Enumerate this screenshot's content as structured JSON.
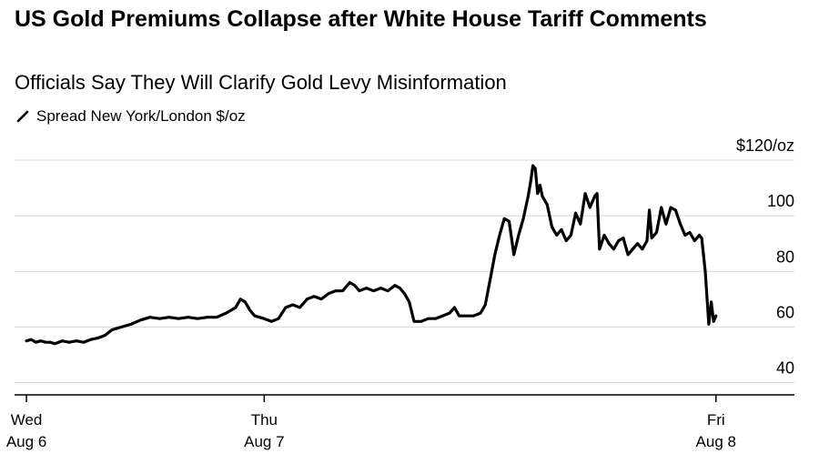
{
  "chart_data": {
    "type": "line",
    "title": "US Gold Premiums Collapse after White House Tariff Comments",
    "subtitle": "Officials Say They Will Clarify Gold Levy Misinformation",
    "series": [
      {
        "name": "Spread New York/London $/oz",
        "color": "#000000",
        "points": [
          [
            0.0,
            55
          ],
          [
            0.02,
            55.5
          ],
          [
            0.04,
            54.5
          ],
          [
            0.06,
            55
          ],
          [
            0.08,
            54.5
          ],
          [
            0.1,
            54.5
          ],
          [
            0.12,
            54
          ],
          [
            0.15,
            55
          ],
          [
            0.18,
            54.5
          ],
          [
            0.21,
            55
          ],
          [
            0.24,
            54.5
          ],
          [
            0.27,
            55.5
          ],
          [
            0.3,
            56
          ],
          [
            0.33,
            57
          ],
          [
            0.36,
            59
          ],
          [
            0.4,
            60
          ],
          [
            0.44,
            61
          ],
          [
            0.48,
            62.5
          ],
          [
            0.52,
            63.5
          ],
          [
            0.56,
            63
          ],
          [
            0.6,
            63.5
          ],
          [
            0.64,
            63
          ],
          [
            0.68,
            63.5
          ],
          [
            0.72,
            63
          ],
          [
            0.76,
            63.5
          ],
          [
            0.8,
            63.5
          ],
          [
            0.84,
            65
          ],
          [
            0.88,
            67
          ],
          [
            0.9,
            70
          ],
          [
            0.92,
            69
          ],
          [
            0.94,
            66
          ],
          [
            0.96,
            64
          ],
          [
            1.0,
            63
          ],
          [
            1.03,
            62
          ],
          [
            1.06,
            63
          ],
          [
            1.09,
            67
          ],
          [
            1.12,
            68
          ],
          [
            1.15,
            67
          ],
          [
            1.18,
            70
          ],
          [
            1.21,
            71
          ],
          [
            1.24,
            70
          ],
          [
            1.27,
            72
          ],
          [
            1.3,
            73
          ],
          [
            1.33,
            73
          ],
          [
            1.36,
            76
          ],
          [
            1.38,
            75
          ],
          [
            1.4,
            73
          ],
          [
            1.43,
            74
          ],
          [
            1.46,
            73
          ],
          [
            1.49,
            74
          ],
          [
            1.52,
            73
          ],
          [
            1.55,
            75
          ],
          [
            1.57,
            74
          ],
          [
            1.59,
            72
          ],
          [
            1.61,
            69
          ],
          [
            1.63,
            62
          ],
          [
            1.66,
            62
          ],
          [
            1.69,
            63
          ],
          [
            1.72,
            63
          ],
          [
            1.75,
            64
          ],
          [
            1.78,
            65
          ],
          [
            1.8,
            67
          ],
          [
            1.82,
            64
          ],
          [
            1.85,
            64
          ],
          [
            1.88,
            64
          ],
          [
            1.91,
            65
          ],
          [
            1.93,
            68
          ],
          [
            1.95,
            77
          ],
          [
            1.97,
            86
          ],
          [
            1.99,
            93
          ],
          [
            2.01,
            99
          ],
          [
            2.03,
            98
          ],
          [
            2.05,
            86
          ],
          [
            2.07,
            93
          ],
          [
            2.09,
            99
          ],
          [
            2.11,
            107
          ],
          [
            2.12,
            112
          ],
          [
            2.13,
            118
          ],
          [
            2.14,
            117
          ],
          [
            2.15,
            108
          ],
          [
            2.16,
            111
          ],
          [
            2.17,
            107
          ],
          [
            2.19,
            104
          ],
          [
            2.21,
            96
          ],
          [
            2.23,
            93
          ],
          [
            2.25,
            95
          ],
          [
            2.27,
            91
          ],
          [
            2.29,
            93
          ],
          [
            2.31,
            101
          ],
          [
            2.33,
            97
          ],
          [
            2.35,
            108
          ],
          [
            2.37,
            103
          ],
          [
            2.39,
            107
          ],
          [
            2.4,
            108
          ],
          [
            2.41,
            88
          ],
          [
            2.43,
            93
          ],
          [
            2.45,
            90
          ],
          [
            2.47,
            88
          ],
          [
            2.49,
            91
          ],
          [
            2.51,
            92
          ],
          [
            2.53,
            86
          ],
          [
            2.55,
            88
          ],
          [
            2.57,
            90
          ],
          [
            2.59,
            88
          ],
          [
            2.61,
            91
          ],
          [
            2.62,
            102
          ],
          [
            2.63,
            92
          ],
          [
            2.65,
            94
          ],
          [
            2.67,
            103
          ],
          [
            2.69,
            97
          ],
          [
            2.71,
            103
          ],
          [
            2.73,
            102
          ],
          [
            2.75,
            97
          ],
          [
            2.77,
            93
          ],
          [
            2.79,
            94
          ],
          [
            2.81,
            91
          ],
          [
            2.83,
            93
          ],
          [
            2.84,
            92
          ],
          [
            2.855,
            80
          ],
          [
            2.87,
            61
          ],
          [
            2.88,
            69
          ],
          [
            2.89,
            62
          ],
          [
            2.9,
            64
          ]
        ]
      }
    ],
    "xlim": [
      -0.05,
      3.23
    ],
    "ylim": [
      35.6,
      120
    ],
    "x_ticks": [
      {
        "value": 0,
        "line1": "Wed",
        "line2": "Aug 6"
      },
      {
        "value": 1,
        "line1": "Thu",
        "line2": "Aug 7"
      },
      {
        "value": 2.9,
        "line1": "Fri",
        "line2": "Aug 8"
      }
    ],
    "y_ticks": [
      {
        "value": 120,
        "label": "$120/oz"
      },
      {
        "value": 100,
        "label": "100"
      },
      {
        "value": 80,
        "label": "80"
      },
      {
        "value": 60,
        "label": "60"
      },
      {
        "value": 40,
        "label": "40"
      }
    ],
    "xlabel": "",
    "ylabel": "",
    "grid": true,
    "legend": "top-left"
  }
}
